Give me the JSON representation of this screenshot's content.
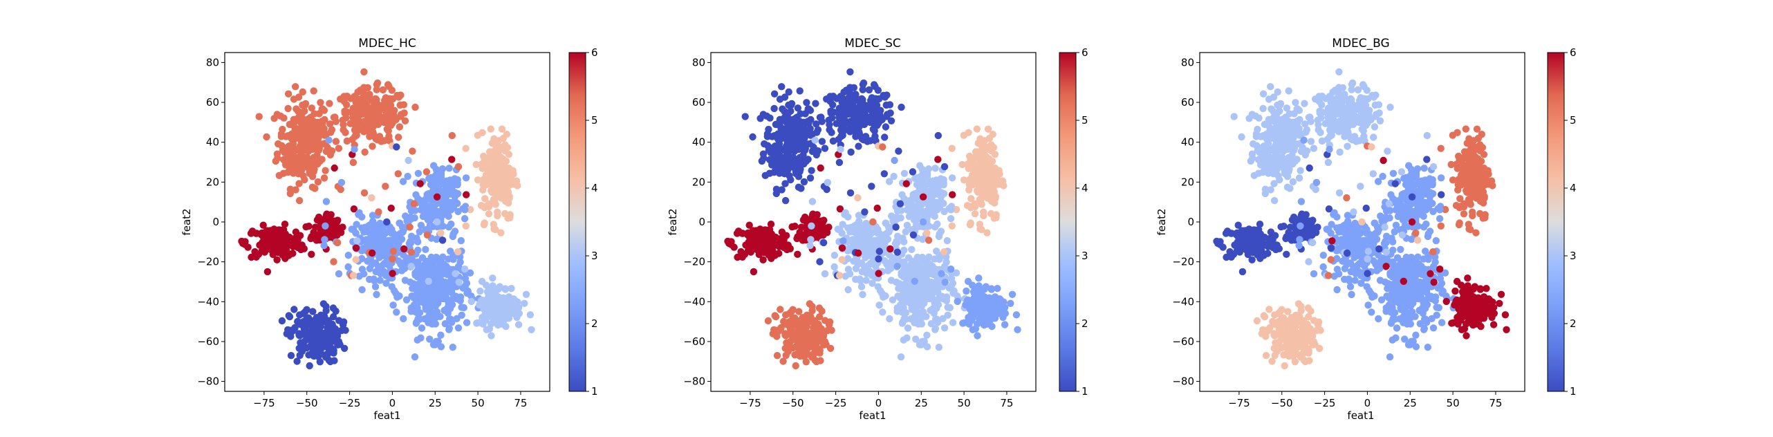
{
  "chart_data": [
    {
      "type": "scatter",
      "title": "MDEC_HC",
      "xlabel": "feat1",
      "ylabel": "feat2",
      "xlim": [
        -98,
        92
      ],
      "ylim": [
        -85,
        85
      ],
      "xticks": [
        "−75",
        "−50",
        "−25",
        "0",
        "25",
        "50",
        "75"
      ],
      "yticks": [
        "−80",
        "−60",
        "−40",
        "−20",
        "0",
        "20",
        "40",
        "60",
        "80"
      ],
      "colorbar": {
        "colormap": "coolwarm",
        "range": [
          1,
          6
        ],
        "ticks": [
          "1",
          "2",
          "3",
          "4",
          "5",
          "6"
        ]
      },
      "clusters": [
        {
          "center": [
            -52,
            40
          ],
          "spread": [
            12,
            18
          ],
          "value": 5.3
        },
        {
          "center": [
            -12,
            53
          ],
          "spread": [
            17,
            11
          ],
          "value": 5.3
        },
        {
          "center": [
            -68,
            -10
          ],
          "spread": [
            14,
            6
          ],
          "value": 6
        },
        {
          "center": [
            -38,
            -3
          ],
          "spread": [
            6,
            6
          ],
          "value": 6
        },
        {
          "center": [
            -45,
            -57
          ],
          "spread": [
            12,
            11
          ],
          "value": 1
        },
        {
          "center": [
            -5,
            -13
          ],
          "spread": [
            15,
            12
          ],
          "value": 2.3
        },
        {
          "center": [
            25,
            -35
          ],
          "spread": [
            15,
            18
          ],
          "value": 2.3
        },
        {
          "center": [
            25,
            10
          ],
          "spread": [
            10,
            13
          ],
          "value": 2.3
        },
        {
          "center": [
            62,
            23
          ],
          "spread": [
            8,
            18
          ],
          "value": 4.1
        },
        {
          "center": [
            62,
            -42
          ],
          "spread": [
            11,
            9
          ],
          "value": 3.0
        }
      ]
    },
    {
      "type": "scatter",
      "title": "MDEC_SC",
      "xlabel": "feat1",
      "ylabel": "feat2",
      "xlim": [
        -98,
        92
      ],
      "ylim": [
        -85,
        85
      ],
      "xticks": [
        "−75",
        "−50",
        "−25",
        "0",
        "25",
        "50",
        "75"
      ],
      "yticks": [
        "−80",
        "−60",
        "−40",
        "−20",
        "0",
        "20",
        "40",
        "60",
        "80"
      ],
      "colorbar": {
        "colormap": "coolwarm",
        "range": [
          1,
          6
        ],
        "ticks": [
          "1",
          "2",
          "3",
          "4",
          "5",
          "6"
        ]
      },
      "clusters": [
        {
          "center": [
            -52,
            40
          ],
          "spread": [
            12,
            18
          ],
          "value": 1
        },
        {
          "center": [
            -12,
            53
          ],
          "spread": [
            17,
            11
          ],
          "value": 1
        },
        {
          "center": [
            -68,
            -10
          ],
          "spread": [
            14,
            6
          ],
          "value": 6
        },
        {
          "center": [
            -38,
            -3
          ],
          "spread": [
            6,
            6
          ],
          "value": 6
        },
        {
          "center": [
            -45,
            -57
          ],
          "spread": [
            12,
            11
          ],
          "value": 5.3
        },
        {
          "center": [
            -5,
            -13
          ],
          "spread": [
            15,
            12
          ],
          "value": 3.0
        },
        {
          "center": [
            25,
            -35
          ],
          "spread": [
            15,
            18
          ],
          "value": 3.0
        },
        {
          "center": [
            25,
            10
          ],
          "spread": [
            10,
            13
          ],
          "value": 3.0
        },
        {
          "center": [
            62,
            23
          ],
          "spread": [
            8,
            18
          ],
          "value": 4.1
        },
        {
          "center": [
            62,
            -42
          ],
          "spread": [
            11,
            9
          ],
          "value": 2.3
        }
      ]
    },
    {
      "type": "scatter",
      "title": "MDEC_BG",
      "xlabel": "feat1",
      "ylabel": "feat2",
      "xlim": [
        -98,
        92
      ],
      "ylim": [
        -85,
        85
      ],
      "xticks": [
        "−75",
        "−50",
        "−25",
        "0",
        "25",
        "50",
        "75"
      ],
      "yticks": [
        "−80",
        "−60",
        "−40",
        "−20",
        "0",
        "20",
        "40",
        "60",
        "80"
      ],
      "colorbar": {
        "colormap": "coolwarm",
        "range": [
          1,
          6
        ],
        "ticks": [
          "1",
          "2",
          "3",
          "4",
          "5",
          "6"
        ]
      },
      "clusters": [
        {
          "center": [
            -52,
            40
          ],
          "spread": [
            12,
            18
          ],
          "value": 3.0
        },
        {
          "center": [
            -12,
            53
          ],
          "spread": [
            17,
            11
          ],
          "value": 3.0
        },
        {
          "center": [
            -68,
            -10
          ],
          "spread": [
            14,
            6
          ],
          "value": 1
        },
        {
          "center": [
            -38,
            -3
          ],
          "spread": [
            6,
            6
          ],
          "value": 1
        },
        {
          "center": [
            -45,
            -57
          ],
          "spread": [
            12,
            11
          ],
          "value": 4.1
        },
        {
          "center": [
            -5,
            -13
          ],
          "spread": [
            15,
            12
          ],
          "value": 2.3
        },
        {
          "center": [
            25,
            -35
          ],
          "spread": [
            15,
            18
          ],
          "value": 2.3
        },
        {
          "center": [
            25,
            10
          ],
          "spread": [
            10,
            13
          ],
          "value": 2.3
        },
        {
          "center": [
            62,
            23
          ],
          "spread": [
            8,
            18
          ],
          "value": 5.3
        },
        {
          "center": [
            62,
            -42
          ],
          "spread": [
            11,
            9
          ],
          "value": 6
        }
      ]
    }
  ]
}
